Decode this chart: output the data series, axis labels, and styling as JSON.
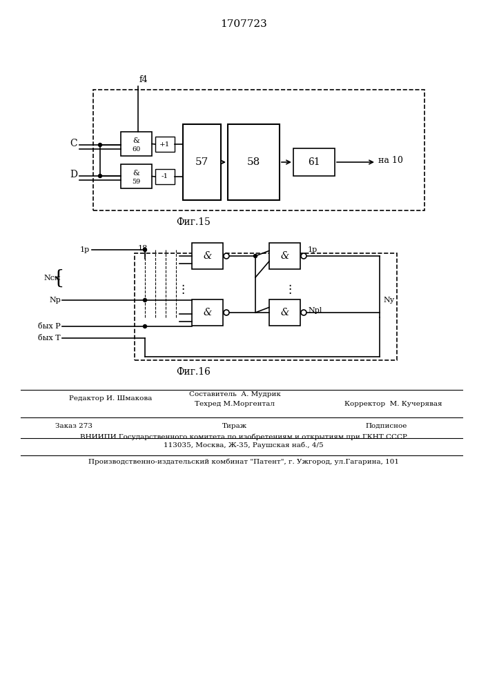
{
  "title": "1707723",
  "fig15_caption": "Фиг.15",
  "fig16_caption": "Фиг.16",
  "footer_lines": [
    [
      "Редактор И. Шмакова",
      "Составитель  А. Мудрик",
      ""
    ],
    [
      "",
      "Техред М.Моргентал",
      "Корректор  М. Кучерявая"
    ],
    [
      "Заказ 273",
      "Тираж",
      "Подписное"
    ],
    [
      "ВНИИПИ Государственного комитета по изобретениям и открытиям при ГКНТ СССР",
      "",
      ""
    ],
    [
      "113035, Москва, Ж-35, Раушская наб., 4/5",
      "",
      ""
    ],
    [
      "Производственно-издательский комбинат \"Патент\", г. Ужгород, ул.Гагарина, 101",
      "",
      ""
    ]
  ],
  "bg_color": "#ffffff",
  "line_color": "#000000",
  "dashed_color": "#000000"
}
